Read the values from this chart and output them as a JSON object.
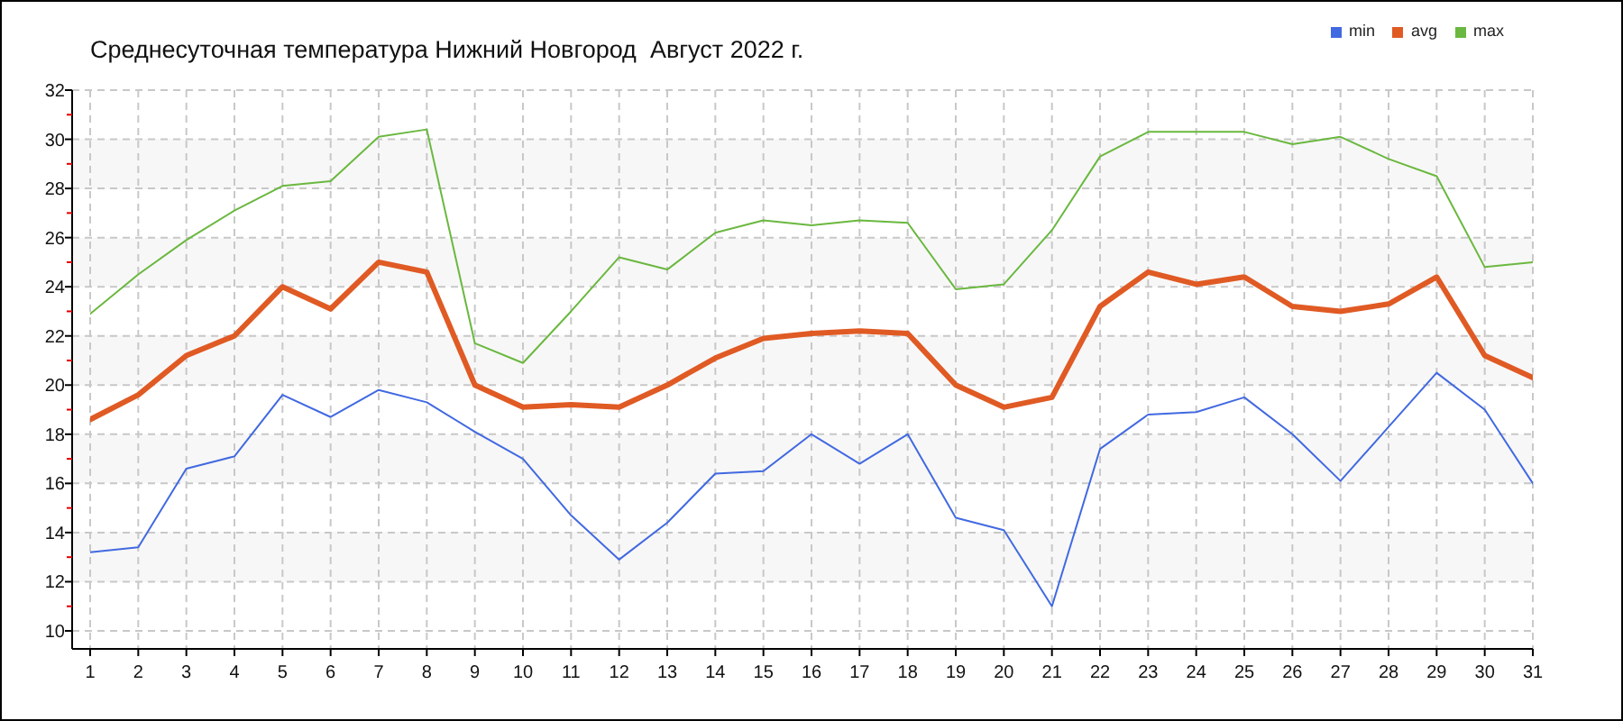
{
  "chart_data": {
    "type": "line",
    "title": "Среднесуточная температура Нижний Новгород  Август 2022 г.",
    "x": [
      1,
      2,
      3,
      4,
      5,
      6,
      7,
      8,
      9,
      10,
      11,
      12,
      13,
      14,
      15,
      16,
      17,
      18,
      19,
      20,
      21,
      22,
      23,
      24,
      25,
      26,
      27,
      28,
      29,
      30,
      31
    ],
    "series": [
      {
        "name": "min",
        "color": "#4169e1",
        "values": [
          13.2,
          13.4,
          16.6,
          17.1,
          19.6,
          18.7,
          19.8,
          19.3,
          18.1,
          17.0,
          14.7,
          12.9,
          14.4,
          16.4,
          16.5,
          18.0,
          16.8,
          18.0,
          14.6,
          14.1,
          11.0,
          17.4,
          18.8,
          18.9,
          19.5,
          18.0,
          16.1,
          18.3,
          20.5,
          19.0,
          16.0
        ]
      },
      {
        "name": "avg",
        "color": "#e05a24",
        "values": [
          18.6,
          19.6,
          21.2,
          22.0,
          24.0,
          23.1,
          25.0,
          24.6,
          20.0,
          19.1,
          19.2,
          19.1,
          20.0,
          21.1,
          21.9,
          22.1,
          22.2,
          22.1,
          20.0,
          19.1,
          19.5,
          23.2,
          24.6,
          24.1,
          24.4,
          23.2,
          23.0,
          23.3,
          24.4,
          21.2,
          20.3
        ]
      },
      {
        "name": "max",
        "color": "#6ab83f",
        "values": [
          22.9,
          24.5,
          25.9,
          27.1,
          28.1,
          28.3,
          30.1,
          30.4,
          21.7,
          20.9,
          23.0,
          25.2,
          24.7,
          26.2,
          26.7,
          26.5,
          26.7,
          26.6,
          23.9,
          24.1,
          26.3,
          29.3,
          30.3,
          30.3,
          30.3,
          29.8,
          30.1,
          29.2,
          28.5,
          24.8,
          25.0
        ]
      }
    ],
    "xlim": [
      1,
      31
    ],
    "xticks": [
      1,
      2,
      3,
      4,
      5,
      6,
      7,
      8,
      9,
      10,
      11,
      12,
      13,
      14,
      15,
      16,
      17,
      18,
      19,
      20,
      21,
      22,
      23,
      24,
      25,
      26,
      27,
      28,
      29,
      30,
      31
    ],
    "ylim": [
      10,
      32
    ],
    "yticks": [
      10,
      {
        "value": 11,
        "label": null
      },
      12,
      {
        "value": 13,
        "label": null
      },
      14,
      {
        "value": 15,
        "label": null
      },
      16,
      {
        "value": 17,
        "label": null
      },
      18,
      {
        "value": 19,
        "label": null
      },
      20,
      {
        "value": 21,
        "label": null
      },
      22,
      {
        "value": 23,
        "label": null
      },
      24,
      {
        "value": 25,
        "label": null
      },
      26,
      {
        "value": 27,
        "label": null
      },
      28,
      {
        "value": 29,
        "label": null
      },
      30,
      {
        "value": 31,
        "label": null
      },
      32
    ],
    "grid": true,
    "legend": "top right",
    "marker": "none",
    "line_style": "solid"
  }
}
